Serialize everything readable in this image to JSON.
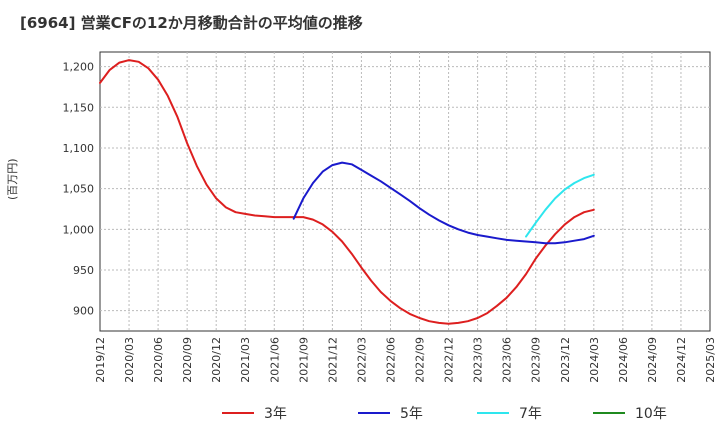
{
  "chart_data": {
    "type": "line",
    "title": "[6964]  営業CFの12か月移動合計の平均値の推移",
    "ylabel": "(百万円)",
    "xlabel": "",
    "ylim": [
      875,
      1218
    ],
    "yticks": [
      900,
      950,
      1000,
      1050,
      1100,
      1150,
      1200
    ],
    "ytick_labels": [
      "900",
      "950",
      "1,000",
      "1,050",
      "1,100",
      "1,150",
      "1,200"
    ],
    "xticks": [
      "2019/12",
      "2020/03",
      "2020/06",
      "2020/09",
      "2020/12",
      "2021/03",
      "2021/06",
      "2021/09",
      "2021/12",
      "2022/03",
      "2022/06",
      "2022/09",
      "2022/12",
      "2023/03",
      "2023/06",
      "2023/09",
      "2023/12",
      "2024/03",
      "2024/06",
      "2024/09",
      "2024/12",
      "2025/03"
    ],
    "grid": true,
    "legend_position": "bottom",
    "series": [
      {
        "name": "3年",
        "color": "#dd1f1f",
        "x": [
          "2019/12",
          "2020/01",
          "2020/02",
          "2020/03",
          "2020/04",
          "2020/05",
          "2020/06",
          "2020/07",
          "2020/08",
          "2020/09",
          "2020/10",
          "2020/11",
          "2020/12",
          "2021/01",
          "2021/02",
          "2021/03",
          "2021/04",
          "2021/05",
          "2021/06",
          "2021/07",
          "2021/08",
          "2021/09",
          "2021/10",
          "2021/11",
          "2021/12",
          "2022/01",
          "2022/02",
          "2022/03",
          "2022/04",
          "2022/05",
          "2022/06",
          "2022/07",
          "2022/08",
          "2022/09",
          "2022/10",
          "2022/11",
          "2022/12",
          "2023/01",
          "2023/02",
          "2023/03",
          "2023/04",
          "2023/05",
          "2023/06",
          "2023/07",
          "2023/08",
          "2023/09",
          "2023/10",
          "2023/11",
          "2023/12",
          "2024/01",
          "2024/02",
          "2024/03"
        ],
        "values": [
          1180,
          1196,
          1205,
          1208,
          1206,
          1198,
          1184,
          1164,
          1138,
          1106,
          1078,
          1055,
          1038,
          1027,
          1021,
          1019,
          1017,
          1016,
          1015,
          1015,
          1015,
          1015,
          1012,
          1006,
          997,
          985,
          970,
          953,
          937,
          923,
          912,
          903,
          896,
          891,
          887,
          885,
          884,
          885,
          887,
          891,
          897,
          906,
          916,
          929,
          945,
          964,
          980,
          994,
          1006,
          1015,
          1021,
          1024
        ]
      },
      {
        "name": "5年",
        "color": "#1a1acc",
        "x": [
          "2021/08",
          "2021/09",
          "2021/10",
          "2021/11",
          "2021/12",
          "2022/01",
          "2022/02",
          "2022/03",
          "2022/04",
          "2022/05",
          "2022/06",
          "2022/07",
          "2022/08",
          "2022/09",
          "2022/10",
          "2022/11",
          "2022/12",
          "2023/01",
          "2023/02",
          "2023/03",
          "2023/04",
          "2023/05",
          "2023/06",
          "2023/07",
          "2023/08",
          "2023/09",
          "2023/10",
          "2023/11",
          "2023/12",
          "2024/01",
          "2024/02",
          "2024/03"
        ],
        "values": [
          1013,
          1038,
          1057,
          1071,
          1079,
          1082,
          1080,
          1073,
          1066,
          1059,
          1051,
          1043,
          1035,
          1026,
          1018,
          1011,
          1005,
          1000,
          996,
          993,
          991,
          989,
          987,
          986,
          985,
          984,
          983,
          983,
          984,
          986,
          988,
          992
        ]
      },
      {
        "name": "7年",
        "color": "#2ee6ee",
        "x": [
          "2023/08",
          "2023/09",
          "2023/10",
          "2023/11",
          "2023/12",
          "2024/01",
          "2024/02",
          "2024/03"
        ],
        "values": [
          991,
          1008,
          1024,
          1038,
          1049,
          1057,
          1063,
          1067
        ]
      },
      {
        "name": "10年",
        "color": "#1f8a1f",
        "x": [],
        "values": []
      }
    ]
  }
}
